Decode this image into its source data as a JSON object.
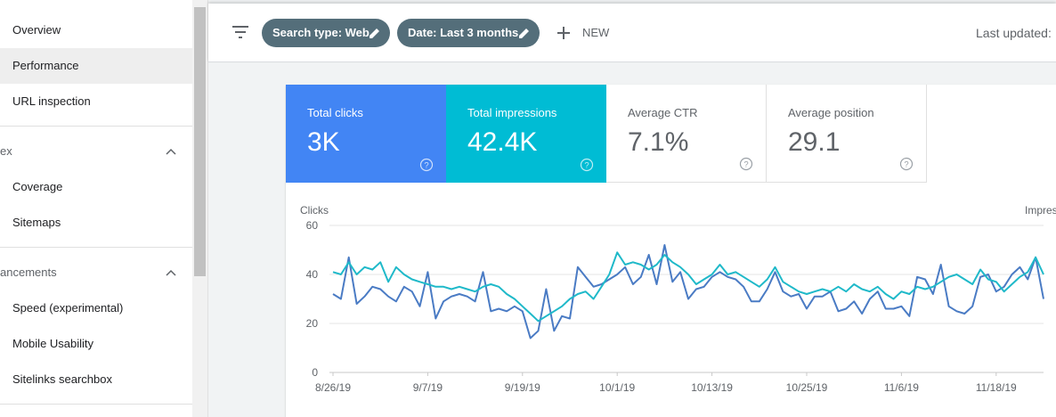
{
  "sidebar": {
    "items": [
      {
        "label": "Overview",
        "active": false
      },
      {
        "label": "Performance",
        "active": true
      },
      {
        "label": "URL inspection",
        "active": false
      }
    ],
    "index_section": {
      "label": "ex",
      "items": [
        "Coverage",
        "Sitemaps"
      ]
    },
    "enhancements_section": {
      "label": "ancements",
      "items": [
        "Speed (experimental)",
        "Mobile Usability",
        "Sitelinks searchbox"
      ]
    }
  },
  "toolbar": {
    "filter_icon": "filter-icon",
    "chips": [
      "Search type: Web",
      "Date: Last 3 months"
    ],
    "new_label": "NEW",
    "last_updated": "Last updated:"
  },
  "metrics": [
    {
      "label": "Total clicks",
      "value": "3K",
      "color": "#4285f4",
      "selected": true
    },
    {
      "label": "Total impressions",
      "value": "42.4K",
      "color": "#00bcd4",
      "selected": true
    },
    {
      "label": "Average CTR",
      "value": "7.1%",
      "selected": false
    },
    {
      "label": "Average position",
      "value": "29.1",
      "selected": false
    }
  ],
  "chart_data": {
    "type": "line",
    "ylabel": "Clicks",
    "y2label": "Impres",
    "ylim": [
      0,
      60
    ],
    "y_ticks": [
      0,
      20,
      40,
      60
    ],
    "x_tick_labels": [
      "8/26/19",
      "9/7/19",
      "9/19/19",
      "10/1/19",
      "10/13/19",
      "10/25/19",
      "11/6/19",
      "11/18/19"
    ],
    "grid": true,
    "series": [
      {
        "name": "Clicks",
        "color": "#4a7bc4",
        "values": [
          32,
          30,
          47,
          28,
          31,
          35,
          34,
          31,
          29,
          35,
          33,
          27,
          41,
          22,
          29,
          31,
          32,
          31,
          29,
          41,
          25,
          26,
          25,
          27,
          25,
          14,
          17,
          34,
          17,
          23,
          22,
          43,
          39,
          35,
          36,
          38,
          40,
          43,
          36,
          39,
          48,
          36,
          52,
          37,
          41,
          30,
          34,
          35,
          39,
          41,
          39,
          38,
          35,
          29,
          29,
          34,
          41,
          33,
          31,
          32,
          26,
          31,
          31,
          33,
          25,
          26,
          29,
          24,
          30,
          33,
          26,
          26,
          27,
          23,
          39,
          38,
          32,
          44,
          27,
          25,
          24,
          27,
          39,
          40,
          33,
          35,
          40,
          43,
          38,
          47,
          30
        ]
      },
      {
        "name": "Impressions",
        "color": "#1fb9c9",
        "values": [
          41,
          40,
          45,
          40,
          43,
          42,
          45,
          37,
          43,
          40,
          38,
          37,
          36,
          35,
          35,
          34,
          35,
          34,
          33,
          35,
          36,
          35,
          32,
          30,
          27,
          24,
          21,
          23,
          25,
          27,
          30,
          32,
          33,
          30,
          35,
          40,
          49,
          44,
          45,
          44,
          42,
          44,
          48,
          45,
          43,
          40,
          36,
          38,
          40,
          44,
          40,
          41,
          39,
          37,
          35,
          38,
          43,
          37,
          35,
          33,
          32,
          33,
          34,
          33,
          35,
          33,
          36,
          34,
          33,
          35,
          32,
          30,
          33,
          32,
          35,
          34,
          35,
          37,
          39,
          40,
          38,
          36,
          42,
          38,
          37,
          33,
          36,
          39,
          41,
          47,
          40
        ]
      }
    ]
  }
}
